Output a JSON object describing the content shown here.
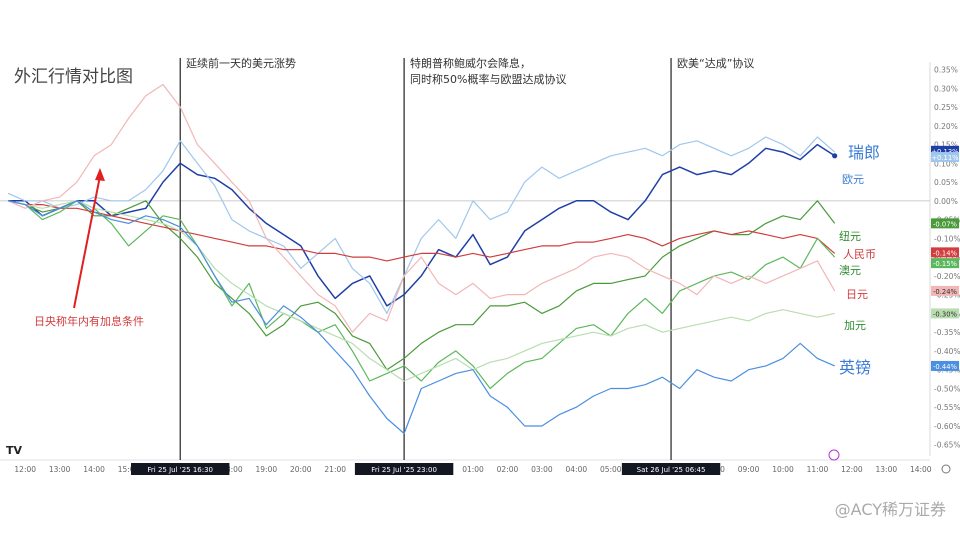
{
  "page": {
    "title": "外汇行情对比图",
    "notes": [
      "延续前一天的美元涨势",
      "特朗普称鲍威尔会降息，",
      "同时称50%概率与欧盟达成协议",
      "欧美“达成”协议"
    ],
    "annotation": "日央称年内有加息条件",
    "watermark": "@ACY稀万证券",
    "logo": "TV"
  },
  "chart_data": {
    "type": "line",
    "ylim": [
      -0.68,
      0.37
    ],
    "y_ticks": [
      0.35,
      0.3,
      0.25,
      0.2,
      0.15,
      0.1,
      0.05,
      0.0,
      -0.05,
      -0.1,
      -0.15,
      -0.2,
      -0.25,
      -0.3,
      -0.35,
      -0.4,
      -0.45,
      -0.5,
      -0.55,
      -0.6,
      -0.65
    ],
    "y_tick_labels": [
      "0.35%",
      "0.30%",
      "0.25%",
      "0.20%",
      "0.15%",
      "0.10%",
      "0.05%",
      "0.00%",
      "-0.05%",
      "-0.10%",
      "-0.15%",
      "-0.20%",
      "-0.25%",
      "-0.30%",
      "-0.35%",
      "-0.40%",
      "-0.45%",
      "-0.50%",
      "-0.55%",
      "-0.60%",
      "-0.65%"
    ],
    "x_ticks": [
      {
        "h": 12,
        "label": "12:00"
      },
      {
        "h": 13,
        "label": "13:00"
      },
      {
        "h": 14,
        "label": "14:00"
      },
      {
        "h": 15,
        "label": "15:00"
      },
      {
        "h": 18,
        "label": "18:00"
      },
      {
        "h": 19,
        "label": "19:00"
      },
      {
        "h": 20,
        "label": "20:00"
      },
      {
        "h": 21,
        "label": "21:00"
      },
      {
        "h": 22,
        "label": "22:"
      },
      {
        "h": 25,
        "label": "01:00"
      },
      {
        "h": 26,
        "label": "02:00"
      },
      {
        "h": 27,
        "label": "03:00"
      },
      {
        "h": 28,
        "label": "04:00"
      },
      {
        "h": 29,
        "label": "05:00"
      },
      {
        "h": 32,
        "label": "08:00"
      },
      {
        "h": 33,
        "label": "09:00"
      },
      {
        "h": 34,
        "label": "10:00"
      },
      {
        "h": 35,
        "label": "11:00"
      },
      {
        "h": 36,
        "label": "12:00"
      },
      {
        "h": 37,
        "label": "13:00"
      },
      {
        "h": 38,
        "label": "14:00"
      }
    ],
    "vlines": [
      {
        "h": 16.5,
        "label": "Fri 25 Jul '25   16:30"
      },
      {
        "h": 23.0,
        "label": "Fri 25 Jul '25   23:00"
      },
      {
        "h": 30.75,
        "label": "Sat 26 Jul '25   06:45"
      }
    ],
    "series": [
      {
        "name": "瑞郎",
        "color": "#1f3fa8",
        "width": 1.5,
        "badge": "+0.13%",
        "label_size": 16,
        "label_color": "#3a7bd5",
        "x": [
          11.5,
          12,
          12.5,
          13,
          13.5,
          14,
          14.5,
          15,
          15.5,
          16,
          16.5,
          17,
          17.5,
          18,
          18.5,
          19,
          19.5,
          20,
          20.5,
          21,
          21.5,
          22,
          22.5,
          23,
          23.5,
          24,
          24.5,
          25,
          25.5,
          26,
          26.5,
          27,
          27.5,
          28,
          28.5,
          29,
          29.5,
          30,
          30.5,
          31,
          31.5,
          32,
          32.5,
          33,
          33.5,
          34,
          34.5,
          35,
          35.5
        ],
        "y": [
          0.0,
          0.0,
          -0.04,
          -0.02,
          0.0,
          0.0,
          -0.04,
          -0.03,
          -0.02,
          0.05,
          0.1,
          0.07,
          0.06,
          0.03,
          -0.02,
          -0.06,
          -0.09,
          -0.12,
          -0.2,
          -0.26,
          -0.22,
          -0.2,
          -0.28,
          -0.25,
          -0.2,
          -0.13,
          -0.15,
          -0.09,
          -0.17,
          -0.15,
          -0.08,
          -0.05,
          -0.02,
          0.0,
          0.0,
          -0.03,
          -0.05,
          0.0,
          0.07,
          0.09,
          0.07,
          0.08,
          0.07,
          0.1,
          0.14,
          0.13,
          0.11,
          0.15,
          0.12
        ]
      },
      {
        "name": "欧元",
        "color": "#9fc7ee",
        "width": 1.2,
        "badge": "+0.11%",
        "label_size": 11,
        "label_color": "#3a7bd5",
        "x": [
          11.5,
          12,
          12.5,
          13,
          13.5,
          14,
          14.5,
          15,
          15.5,
          16,
          16.5,
          17,
          17.5,
          18,
          18.5,
          19,
          19.5,
          20,
          20.5,
          21,
          21.5,
          22,
          22.5,
          23,
          23.5,
          24,
          24.5,
          25,
          25.5,
          26,
          26.5,
          27,
          27.5,
          28,
          28.5,
          29,
          29.5,
          30,
          30.5,
          31,
          31.5,
          32,
          32.5,
          33,
          33.5,
          34,
          34.5,
          35,
          35.5
        ],
        "y": [
          0.02,
          0.0,
          0.0,
          -0.02,
          -0.01,
          0.01,
          0.0,
          0.0,
          0.03,
          0.08,
          0.16,
          0.1,
          0.04,
          -0.05,
          -0.08,
          -0.1,
          -0.12,
          -0.18,
          -0.14,
          -0.1,
          -0.18,
          -0.22,
          -0.3,
          -0.2,
          -0.1,
          -0.05,
          -0.1,
          0.0,
          -0.05,
          -0.03,
          0.05,
          0.09,
          0.06,
          0.08,
          0.1,
          0.12,
          0.13,
          0.14,
          0.12,
          0.15,
          0.16,
          0.14,
          0.12,
          0.14,
          0.17,
          0.15,
          0.12,
          0.17,
          0.13
        ]
      },
      {
        "name": "纽元",
        "color": "#4a9a3a",
        "width": 1.2,
        "badge": "-0.07%",
        "label_size": 11,
        "label_color": "#2e8b2e",
        "x": [
          11.5,
          12,
          12.5,
          13,
          13.5,
          14,
          14.5,
          15,
          15.5,
          16,
          16.5,
          17,
          17.5,
          18,
          18.5,
          19,
          19.5,
          20,
          20.5,
          21,
          21.5,
          22,
          22.5,
          23,
          23.5,
          24,
          24.5,
          25,
          25.5,
          26,
          26.5,
          27,
          27.5,
          28,
          28.5,
          29,
          29.5,
          30,
          30.5,
          31,
          31.5,
          32,
          32.5,
          33,
          33.5,
          34,
          34.5,
          35,
          35.5
        ],
        "y": [
          0.0,
          -0.01,
          -0.03,
          -0.02,
          0.0,
          -0.04,
          -0.04,
          -0.02,
          0.0,
          -0.06,
          -0.1,
          -0.15,
          -0.22,
          -0.26,
          -0.3,
          -0.36,
          -0.33,
          -0.28,
          -0.27,
          -0.3,
          -0.36,
          -0.38,
          -0.45,
          -0.42,
          -0.38,
          -0.35,
          -0.33,
          -0.33,
          -0.28,
          -0.28,
          -0.27,
          -0.3,
          -0.28,
          -0.24,
          -0.22,
          -0.22,
          -0.21,
          -0.2,
          -0.15,
          -0.12,
          -0.1,
          -0.08,
          -0.09,
          -0.09,
          -0.06,
          -0.04,
          -0.05,
          0.0,
          -0.06
        ]
      },
      {
        "name": "人民币",
        "color": "#d23c3c",
        "width": 1.2,
        "badge": "-0.14%",
        "label_size": 11,
        "label_color": "#d23c3c",
        "x": [
          11.5,
          12,
          12.5,
          13,
          13.5,
          14,
          14.5,
          15,
          15.5,
          16,
          16.5,
          17,
          17.5,
          18,
          18.5,
          19,
          19.5,
          20,
          20.5,
          21,
          21.5,
          22,
          22.5,
          23,
          23.5,
          24,
          24.5,
          25,
          25.5,
          26,
          26.5,
          27,
          27.5,
          28,
          28.5,
          29,
          29.5,
          30,
          30.5,
          31,
          31.5,
          32,
          32.5,
          33,
          33.5,
          34,
          34.5,
          35,
          35.5
        ],
        "y": [
          0.0,
          -0.01,
          -0.01,
          -0.02,
          -0.02,
          -0.03,
          -0.04,
          -0.05,
          -0.06,
          -0.07,
          -0.08,
          -0.09,
          -0.1,
          -0.11,
          -0.12,
          -0.12,
          -0.13,
          -0.13,
          -0.14,
          -0.14,
          -0.15,
          -0.15,
          -0.16,
          -0.15,
          -0.14,
          -0.14,
          -0.15,
          -0.14,
          -0.15,
          -0.14,
          -0.13,
          -0.12,
          -0.12,
          -0.11,
          -0.11,
          -0.1,
          -0.09,
          -0.1,
          -0.12,
          -0.1,
          -0.09,
          -0.08,
          -0.09,
          -0.08,
          -0.09,
          -0.1,
          -0.09,
          -0.1,
          -0.14
        ]
      },
      {
        "name": "澳元",
        "color": "#5cb85c",
        "width": 1.2,
        "badge": "-0.15%",
        "label_size": 11,
        "label_color": "#2e8b2e",
        "x": [
          11.5,
          12,
          12.5,
          13,
          13.5,
          14,
          14.5,
          15,
          15.5,
          16,
          16.5,
          17,
          17.5,
          18,
          18.5,
          19,
          19.5,
          20,
          20.5,
          21,
          21.5,
          22,
          22.5,
          23,
          23.5,
          24,
          24.5,
          25,
          25.5,
          26,
          26.5,
          27,
          27.5,
          28,
          28.5,
          29,
          29.5,
          30,
          30.5,
          31,
          31.5,
          32,
          32.5,
          33,
          33.5,
          34,
          34.5,
          35,
          35.5
        ],
        "y": [
          0.0,
          -0.01,
          -0.05,
          -0.03,
          0.0,
          -0.02,
          -0.06,
          -0.12,
          -0.08,
          -0.04,
          -0.05,
          -0.12,
          -0.2,
          -0.28,
          -0.22,
          -0.34,
          -0.3,
          -0.32,
          -0.35,
          -0.33,
          -0.4,
          -0.48,
          -0.46,
          -0.44,
          -0.48,
          -0.43,
          -0.4,
          -0.44,
          -0.5,
          -0.46,
          -0.43,
          -0.42,
          -0.38,
          -0.34,
          -0.33,
          -0.36,
          -0.3,
          -0.26,
          -0.3,
          -0.24,
          -0.22,
          -0.2,
          -0.19,
          -0.21,
          -0.17,
          -0.15,
          -0.18,
          -0.1,
          -0.15
        ]
      },
      {
        "name": "日元",
        "color": "#f2b6b6",
        "width": 1.2,
        "badge": "-0.24%",
        "label_size": 11,
        "label_color": "#d23c3c",
        "x": [
          11.5,
          12,
          12.5,
          13,
          13.5,
          14,
          14.5,
          15,
          15.5,
          16,
          16.5,
          17,
          17.5,
          18,
          18.5,
          19,
          19.5,
          20,
          20.5,
          21,
          21.5,
          22,
          22.5,
          23,
          23.5,
          24,
          24.5,
          25,
          25.5,
          26,
          26.5,
          27,
          27.5,
          28,
          28.5,
          29,
          29.5,
          30,
          30.5,
          31,
          31.5,
          32,
          32.5,
          33,
          33.5,
          34,
          34.5,
          35,
          35.5
        ],
        "y": [
          0.0,
          -0.02,
          0.0,
          0.01,
          0.05,
          0.12,
          0.15,
          0.22,
          0.28,
          0.31,
          0.25,
          0.15,
          0.1,
          0.05,
          0.0,
          -0.1,
          -0.15,
          -0.2,
          -0.25,
          -0.28,
          -0.35,
          -0.3,
          -0.32,
          -0.2,
          -0.15,
          -0.22,
          -0.25,
          -0.22,
          -0.26,
          -0.25,
          -0.25,
          -0.22,
          -0.2,
          -0.18,
          -0.15,
          -0.14,
          -0.15,
          -0.18,
          -0.2,
          -0.22,
          -0.25,
          -0.2,
          -0.22,
          -0.2,
          -0.22,
          -0.2,
          -0.18,
          -0.16,
          -0.24
        ]
      },
      {
        "name": "加元",
        "color": "#b9ddb0",
        "width": 1.2,
        "badge": "-0.30%",
        "label_size": 11,
        "label_color": "#2e8b2e",
        "x": [
          11.5,
          12,
          12.5,
          13,
          13.5,
          14,
          14.5,
          15,
          15.5,
          16,
          16.5,
          17,
          17.5,
          18,
          18.5,
          19,
          19.5,
          20,
          20.5,
          21,
          21.5,
          22,
          22.5,
          23,
          23.5,
          24,
          24.5,
          25,
          25.5,
          26,
          26.5,
          27,
          27.5,
          28,
          28.5,
          29,
          29.5,
          30,
          30.5,
          31,
          31.5,
          32,
          32.5,
          33,
          33.5,
          34,
          34.5,
          35,
          35.5
        ],
        "y": [
          0.0,
          -0.01,
          -0.02,
          -0.01,
          0.0,
          -0.02,
          -0.03,
          -0.04,
          -0.05,
          -0.06,
          -0.08,
          -0.12,
          -0.18,
          -0.22,
          -0.25,
          -0.28,
          -0.3,
          -0.32,
          -0.34,
          -0.36,
          -0.38,
          -0.42,
          -0.45,
          -0.48,
          -0.46,
          -0.44,
          -0.42,
          -0.45,
          -0.43,
          -0.42,
          -0.4,
          -0.38,
          -0.37,
          -0.36,
          -0.35,
          -0.36,
          -0.34,
          -0.33,
          -0.35,
          -0.34,
          -0.33,
          -0.32,
          -0.31,
          -0.32,
          -0.3,
          -0.29,
          -0.3,
          -0.31,
          -0.3
        ]
      },
      {
        "name": "英镑",
        "color": "#4a8fe0",
        "width": 1.2,
        "badge": "-0.44%",
        "label_size": 16,
        "label_color": "#3a7bd5",
        "x": [
          11.5,
          12,
          12.5,
          13,
          13.5,
          14,
          14.5,
          15,
          15.5,
          16,
          16.5,
          17,
          17.5,
          18,
          18.5,
          19,
          19.5,
          20,
          20.5,
          21,
          21.5,
          22,
          22.5,
          23,
          23.5,
          24,
          24.5,
          25,
          25.5,
          26,
          26.5,
          27,
          27.5,
          28,
          28.5,
          29,
          29.5,
          30,
          30.5,
          31,
          31.5,
          32,
          32.5,
          33,
          33.5,
          34,
          34.5,
          35,
          35.5
        ],
        "y": [
          0.0,
          -0.01,
          -0.04,
          -0.02,
          0.0,
          -0.03,
          -0.05,
          -0.06,
          -0.04,
          -0.05,
          -0.07,
          -0.12,
          -0.2,
          -0.27,
          -0.26,
          -0.33,
          -0.28,
          -0.31,
          -0.35,
          -0.4,
          -0.45,
          -0.52,
          -0.58,
          -0.62,
          -0.5,
          -0.48,
          -0.46,
          -0.45,
          -0.52,
          -0.55,
          -0.6,
          -0.6,
          -0.57,
          -0.55,
          -0.52,
          -0.5,
          -0.5,
          -0.49,
          -0.47,
          -0.5,
          -0.45,
          -0.47,
          -0.48,
          -0.45,
          -0.44,
          -0.42,
          -0.38,
          -0.42,
          -0.44
        ]
      }
    ]
  }
}
